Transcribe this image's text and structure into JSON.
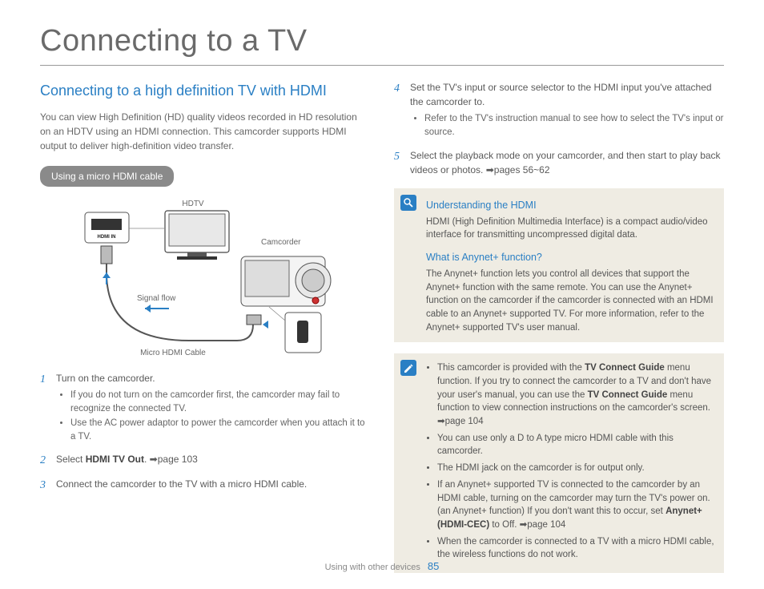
{
  "title": "Connecting to a TV",
  "left": {
    "subtitle": "Connecting to a high definition TV with HDMI",
    "intro": "You can view High Definition (HD) quality videos recorded in HD resolution on an HDTV using an HDMI connection. This camcorder supports HDMI output to deliver high-definition video transfer.",
    "pill": "Using a micro HDMI cable",
    "diagram": {
      "hdtv": "HDTV",
      "hdmi_in": "HDMI IN",
      "camcorder": "Camcorder",
      "signal": "Signal flow",
      "cable": "Micro HDMI Cable"
    },
    "steps": [
      {
        "n": "1",
        "text": "Turn on the camcorder.",
        "subs": [
          "If you do not turn on the camcorder first, the camcorder may fail to recognize the connected TV.",
          "Use the AC power adaptor to power the camcorder when you attach it to a TV."
        ]
      },
      {
        "n": "2",
        "html": "Select <b>HDMI TV Out</b>. ➡page 103"
      },
      {
        "n": "3",
        "text": "Connect the camcorder to the TV with a micro HDMI cable."
      }
    ]
  },
  "right": {
    "steps": [
      {
        "n": "4",
        "text": "Set the TV's input or source selector to the HDMI input you've attached the camcorder to.",
        "subs": [
          "Refer to the TV's instruction manual to see how to select the TV's input or source."
        ]
      },
      {
        "n": "5",
        "text": "Select the playback mode on your camcorder, and then start to play back videos or photos. ➡pages 56~62"
      }
    ],
    "box1": {
      "h1": "Understanding the HDMI",
      "p1": "HDMI (High Definition Multimedia Interface) is a compact audio/video interface for transmitting uncompressed digital data.",
      "h2": "What is Anynet+ function?",
      "p2": "The Anynet+ function lets you control all devices that support the Anynet+ function with the same remote. You can use the Anynet+ function on the camcorder if the camcorder is connected with an HDMI cable to an Anynet+ supported TV. For more information, refer to the Anynet+ supported TV's user manual."
    },
    "box2": {
      "items": [
        "This camcorder is provided with the <b>TV Connect Guide</b> menu function. If you try to connect the camcorder to a TV and don't have your user's manual, you can use the <b>TV Connect Guide</b> menu function to view connection instructions on the camcorder's screen. ➡page 104",
        "You can use only a D to A type micro HDMI cable with this camcorder.",
        "The HDMI jack on the camcorder is for output only.",
        "If an Anynet+ supported TV is connected to the camcorder by an HDMI cable, turning on the camcorder may turn the TV's power on. (an Anynet+ function) If you don't want this to occur, set <b>Anynet+ (HDMI-CEC)</b> to Off. ➡page 104",
        "When the camcorder is connected to a TV with a micro HDMI cable, the wireless functions do not work."
      ]
    }
  },
  "footer": {
    "section": "Using with other devices",
    "page": "85"
  },
  "colors": {
    "accent": "#2a7fc4",
    "boxbg": "#efece3"
  }
}
